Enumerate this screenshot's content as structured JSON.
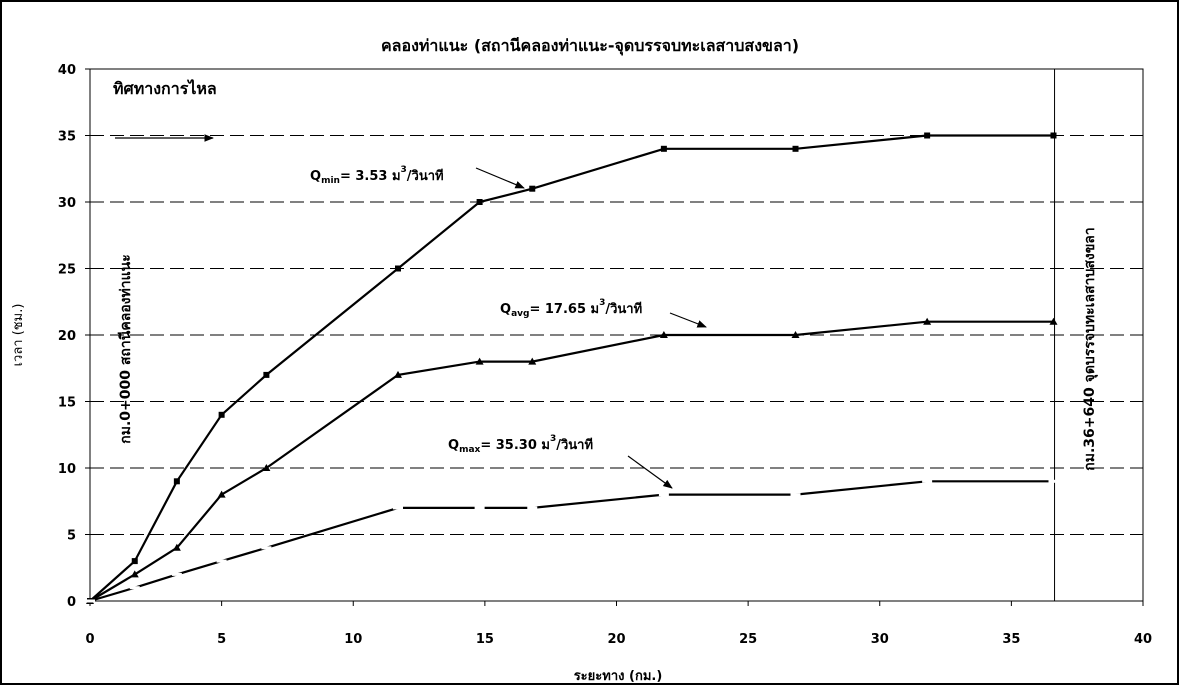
{
  "chart_data": {
    "type": "line",
    "title": "คลองท่าแนะ (สถานีคลองท่าแนะ-จุดบรรจบทะเลสาบสงขลา)",
    "xlabel": "ระยะทาง (กม.)",
    "ylabel": "เวลา (ชม.)",
    "xlim": [
      0,
      40
    ],
    "ylim": [
      0,
      40
    ],
    "x_ticks": [
      "0",
      "5",
      "10",
      "15",
      "20",
      "25",
      "30",
      "35",
      "40"
    ],
    "y_ticks": [
      "0",
      "5",
      "10",
      "15",
      "20",
      "25",
      "30",
      "35",
      "40"
    ],
    "grid": "horizontal-dashed",
    "series": [
      {
        "name": "Q_min",
        "marker": "square",
        "x": [
          0,
          1.7,
          3.3,
          5.0,
          6.7,
          11.7,
          14.8,
          16.8,
          21.8,
          26.8,
          31.8,
          36.6
        ],
        "y": [
          0,
          3,
          9,
          14,
          17,
          25,
          30,
          31,
          34,
          34,
          35,
          35
        ]
      },
      {
        "name": "Q_avg",
        "marker": "triangle",
        "x": [
          0,
          1.7,
          3.3,
          5.0,
          6.7,
          11.7,
          14.8,
          16.8,
          21.8,
          26.8,
          31.8,
          36.6
        ],
        "y": [
          0,
          2,
          4,
          8,
          10,
          17,
          18,
          18,
          20,
          20,
          21,
          21
        ]
      },
      {
        "name": "Q_max",
        "marker": "dash",
        "x": [
          0,
          1.7,
          3.3,
          5.0,
          6.7,
          11.7,
          14.8,
          16.8,
          21.8,
          26.8,
          31.8,
          36.6
        ],
        "y": [
          0,
          1,
          2,
          3,
          4,
          7,
          7,
          7,
          8,
          8,
          9,
          9
        ]
      }
    ],
    "annotations": {
      "flow_direction": "ทิศทางการไหล",
      "start_station": "กม.0+000 สถานีคลองท่าแนะ",
      "end_station": "กม.36+640 จุดบรรจบทะเลสาบสงขลา",
      "end_line_x": 36.64
    },
    "labels": {
      "qmin": {
        "q": "Q",
        "sub": "min",
        "text": "= 3.53 ม",
        "sup": "3",
        "unit": "/วินาที"
      },
      "qavg": {
        "q": "Q",
        "sub": "avg",
        "text": "= 17.65 ม",
        "sup": "3",
        "unit": "/วินาที"
      },
      "qmax": {
        "q": "Q",
        "sub": "max",
        "text": "= 35.30 ม",
        "sup": "3",
        "unit": "/วินาที"
      }
    }
  }
}
